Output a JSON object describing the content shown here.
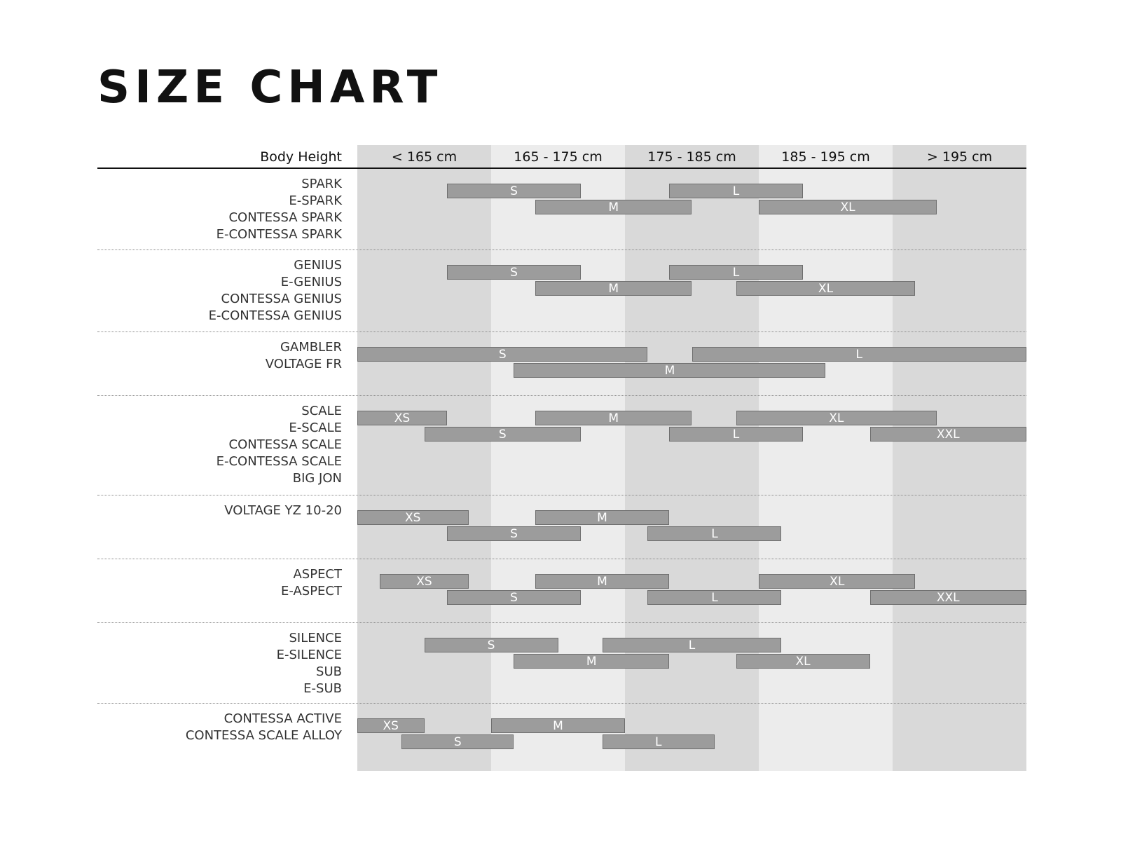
{
  "chart_data": {
    "type": "bar",
    "title": "SIZE CHART",
    "row_header": "Body Height",
    "categories": [
      "< 165 cm",
      "165 - 175 cm",
      "175 - 185 cm",
      "185 - 195 cm",
      "> 195 cm"
    ],
    "xlim_cm": [
      155,
      205
    ],
    "colors": {
      "band_dark": "#d9d9d9",
      "band_light": "#ececec",
      "bar_fill": "#9c9c9c",
      "bar_border": "#6e6e6e",
      "bar_text": "#ffffff"
    },
    "groups": [
      {
        "models": [
          "SPARK",
          "E-SPARK",
          "CONTESSA SPARK",
          "E-CONTESSA SPARK"
        ],
        "bars": [
          {
            "size": "S",
            "row": 0,
            "from": 161.7,
            "to": 171.7
          },
          {
            "size": "L",
            "row": 0,
            "from": 178.3,
            "to": 188.3
          },
          {
            "size": "M",
            "row": 1,
            "from": 168.3,
            "to": 180
          },
          {
            "size": "XL",
            "row": 1,
            "from": 185,
            "to": 198.3
          }
        ]
      },
      {
        "models": [
          "GENIUS",
          "E-GENIUS",
          "CONTESSA GENIUS",
          "E-CONTESSA GENIUS"
        ],
        "bars": [
          {
            "size": "S",
            "row": 0,
            "from": 161.7,
            "to": 171.7
          },
          {
            "size": "L",
            "row": 0,
            "from": 178.3,
            "to": 188.3
          },
          {
            "size": "M",
            "row": 1,
            "from": 168.3,
            "to": 180
          },
          {
            "size": "XL",
            "row": 1,
            "from": 183.3,
            "to": 196.7
          }
        ]
      },
      {
        "models": [
          "GAMBLER",
          "VOLTAGE FR"
        ],
        "bars": [
          {
            "size": "S",
            "row": 0,
            "from": 155,
            "to": 176.7
          },
          {
            "size": "L",
            "row": 0,
            "from": 180,
            "to": 205
          },
          {
            "size": "M",
            "row": 1,
            "from": 166.7,
            "to": 190
          }
        ]
      },
      {
        "models": [
          "SCALE",
          "E-SCALE",
          "CONTESSA SCALE",
          "E-CONTESSA SCALE",
          "BIG JON"
        ],
        "bars": [
          {
            "size": "XS",
            "row": 0,
            "from": 155,
            "to": 161.7
          },
          {
            "size": "M",
            "row": 0,
            "from": 168.3,
            "to": 180
          },
          {
            "size": "XL",
            "row": 0,
            "from": 183.3,
            "to": 198.3
          },
          {
            "size": "S",
            "row": 1,
            "from": 160,
            "to": 171.7
          },
          {
            "size": "L",
            "row": 1,
            "from": 178.3,
            "to": 188.3
          },
          {
            "size": "XXL",
            "row": 1,
            "from": 193.3,
            "to": 205
          }
        ]
      },
      {
        "models": [
          "VOLTAGE YZ 10-20"
        ],
        "bars": [
          {
            "size": "XS",
            "row": 0,
            "from": 155,
            "to": 163.3
          },
          {
            "size": "M",
            "row": 0,
            "from": 168.3,
            "to": 178.3
          },
          {
            "size": "S",
            "row": 1,
            "from": 161.7,
            "to": 171.7
          },
          {
            "size": "L",
            "row": 1,
            "from": 176.7,
            "to": 186.7
          }
        ]
      },
      {
        "models": [
          "ASPECT",
          "E-ASPECT"
        ],
        "bars": [
          {
            "size": "XS",
            "row": 0,
            "from": 156.7,
            "to": 163.3
          },
          {
            "size": "M",
            "row": 0,
            "from": 168.3,
            "to": 178.3
          },
          {
            "size": "XL",
            "row": 0,
            "from": 185,
            "to": 196.7
          },
          {
            "size": "S",
            "row": 1,
            "from": 161.7,
            "to": 171.7
          },
          {
            "size": "L",
            "row": 1,
            "from": 176.7,
            "to": 186.7
          },
          {
            "size": "XXL",
            "row": 1,
            "from": 193.3,
            "to": 205
          }
        ]
      },
      {
        "models": [
          "SILENCE",
          "E-SILENCE",
          "SUB",
          "E-SUB"
        ],
        "bars": [
          {
            "size": "S",
            "row": 0,
            "from": 160,
            "to": 170
          },
          {
            "size": "L",
            "row": 0,
            "from": 173.3,
            "to": 186.7
          },
          {
            "size": "M",
            "row": 1,
            "from": 166.7,
            "to": 178.3
          },
          {
            "size": "XL",
            "row": 1,
            "from": 183.3,
            "to": 193.3
          }
        ]
      },
      {
        "models": [
          "CONTESSA ACTIVE",
          "CONTESSA SCALE ALLOY"
        ],
        "bars": [
          {
            "size": "XS",
            "row": 0,
            "from": 155,
            "to": 160
          },
          {
            "size": "M",
            "row": 0,
            "from": 165,
            "to": 175
          },
          {
            "size": "S",
            "row": 1,
            "from": 158.3,
            "to": 166.7
          },
          {
            "size": "L",
            "row": 1,
            "from": 173.3,
            "to": 181.7
          }
        ]
      }
    ]
  }
}
